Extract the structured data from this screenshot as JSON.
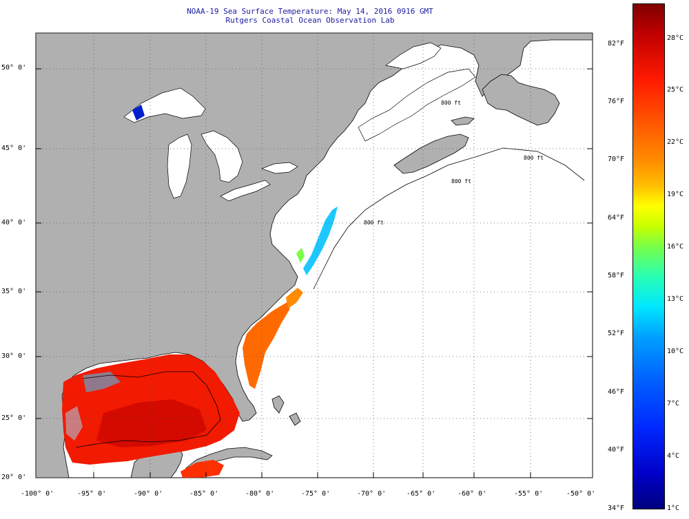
{
  "title_line1": "NOAA-19 Sea Surface Temperature:  May 14, 2016 0916 GMT",
  "title_line2": "Rutgers Coastal Ocean Observation Lab",
  "lat_labels": [
    "50° 0'",
    "45° 0'",
    "40° 0'",
    "35° 0'",
    "30° 0'",
    "25° 0'",
    "20° 0'"
  ],
  "lon_labels": [
    "-100° 0'",
    "-95° 0'",
    "-90° 0'",
    "-85° 0'",
    "-80° 0'",
    "-75° 0'",
    "-70° 0'",
    "-65° 0'",
    "-60° 0'",
    "-55° 0'",
    "-50° 0'"
  ],
  "colorbar": {
    "fahrenheit_labels": [
      "82°F",
      "76°F",
      "70°F",
      "64°F",
      "58°F",
      "52°F",
      "46°F",
      "40°F",
      "34°F"
    ],
    "celsius_labels": [
      "28°C",
      "25°C",
      "22°C",
      "19°C",
      "16°C",
      "13°C",
      "10°C",
      "7°C",
      "4°C",
      "1°C"
    ]
  },
  "contour_labels": [
    "800 ft",
    "800 ft",
    "800 ft",
    "800 ft"
  ],
  "colors": {
    "land": "#b0b0b0",
    "ocean_nodata": "#ffffff",
    "title_text": "#1a1aa0",
    "grid": "#555555"
  }
}
